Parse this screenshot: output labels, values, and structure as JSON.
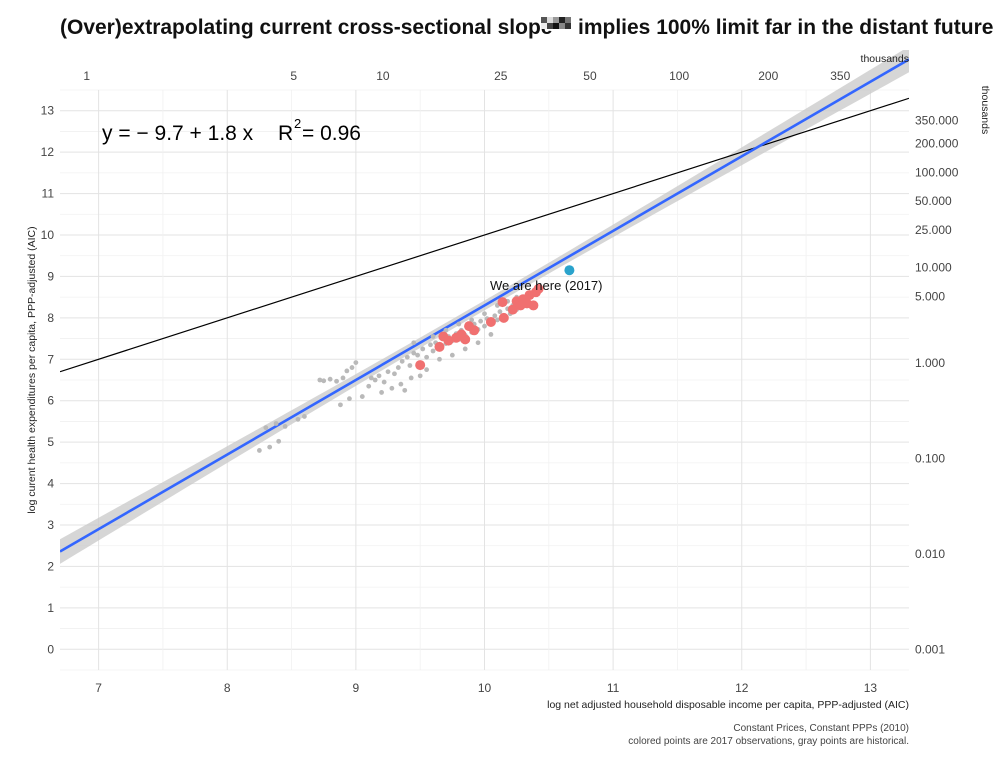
{
  "chart_data": {
    "type": "scatter",
    "title": "(Over)extrapolating current cross-sectional slope",
    "title_suffix": "implies 100% limit far in the distant future",
    "xlabel": "log net adjusted household disposable income per capita, PPP-adjusted (AIC)",
    "ylabel": "log curent health expenditures per capita, PPP-adjusted (AIC)",
    "xlim": [
      6.7,
      13.3
    ],
    "ylim": [
      -0.5,
      13.5
    ],
    "x_ticks": [
      7,
      8,
      9,
      10,
      11,
      12,
      13
    ],
    "y_ticks": [
      0,
      1,
      2,
      3,
      4,
      5,
      6,
      7,
      8,
      9,
      10,
      11,
      12,
      13
    ],
    "grid": true,
    "top_axis": {
      "unit_label": "thousands",
      "ticks": [
        {
          "label": "1",
          "value": 1
        },
        {
          "label": "5",
          "value": 5
        },
        {
          "label": "10",
          "value": 10
        },
        {
          "label": "25",
          "value": 25
        },
        {
          "label": "50",
          "value": 50
        },
        {
          "label": "100",
          "value": 100
        },
        {
          "label": "200",
          "value": 200
        },
        {
          "label": "350",
          "value": 350
        }
      ]
    },
    "right_axis": {
      "unit_label": "thousands",
      "ticks": [
        {
          "label": "0.001",
          "value": 0.001
        },
        {
          "label": "0.010",
          "value": 0.01
        },
        {
          "label": "0.100",
          "value": 0.1
        },
        {
          "label": "1.000",
          "value": 1
        },
        {
          "label": "5.000",
          "value": 5
        },
        {
          "label": "10.000",
          "value": 10
        },
        {
          "label": "25.000",
          "value": 25
        },
        {
          "label": "50.000",
          "value": 50
        },
        {
          "label": "100.000",
          "value": 100
        },
        {
          "label": "200.000",
          "value": 200
        },
        {
          "label": "350.000",
          "value": 350
        }
      ]
    },
    "equation": {
      "y_part": "y = − 9.7 + 1.8 x",
      "r2_symbol": "R",
      "r2_exp": "2",
      "r2_value": " = 0.96"
    },
    "annotation": "We are here (2017)",
    "fit": {
      "intercept": -9.7,
      "slope": 1.8,
      "ci_halfwidth_at_mean": 0.12,
      "ci_growth": 0.085,
      "mean_x": 9.9
    },
    "reference_line": {
      "intercept": 0,
      "slope": 1
    },
    "colors": {
      "fit": "#3366ff",
      "band": "#c8c8c8",
      "historical": "#b9b9b9",
      "current": "#f07070",
      "highlight": "#2aa3cc",
      "reference": "#000000"
    },
    "historical_points": [
      [
        8.25,
        4.8
      ],
      [
        8.33,
        4.88
      ],
      [
        8.4,
        5.02
      ],
      [
        8.3,
        5.35
      ],
      [
        8.38,
        5.45
      ],
      [
        8.45,
        5.38
      ],
      [
        8.55,
        5.55
      ],
      [
        8.6,
        5.62
      ],
      [
        8.72,
        6.5
      ],
      [
        8.75,
        6.48
      ],
      [
        8.8,
        6.52
      ],
      [
        8.85,
        6.47
      ],
      [
        8.9,
        6.55
      ],
      [
        8.93,
        6.72
      ],
      [
        8.97,
        6.8
      ],
      [
        9.0,
        6.92
      ],
      [
        8.88,
        5.9
      ],
      [
        8.95,
        6.05
      ],
      [
        9.05,
        6.1
      ],
      [
        9.1,
        6.35
      ],
      [
        9.12,
        6.55
      ],
      [
        9.18,
        6.6
      ],
      [
        9.22,
        6.45
      ],
      [
        9.25,
        6.7
      ],
      [
        9.3,
        6.65
      ],
      [
        9.33,
        6.8
      ],
      [
        9.36,
        6.95
      ],
      [
        9.4,
        7.05
      ],
      [
        9.42,
        6.85
      ],
      [
        9.45,
        7.15
      ],
      [
        9.48,
        7.1
      ],
      [
        9.5,
        6.9
      ],
      [
        9.52,
        7.25
      ],
      [
        9.55,
        7.05
      ],
      [
        9.58,
        7.35
      ],
      [
        9.6,
        7.2
      ],
      [
        9.62,
        7.4
      ],
      [
        9.65,
        7.3
      ],
      [
        9.68,
        7.5
      ],
      [
        9.7,
        7.38
      ],
      [
        9.72,
        7.55
      ],
      [
        9.75,
        7.45
      ],
      [
        9.78,
        7.62
      ],
      [
        9.8,
        7.48
      ],
      [
        9.82,
        7.7
      ],
      [
        9.85,
        7.58
      ],
      [
        9.88,
        7.75
      ],
      [
        9.9,
        7.65
      ],
      [
        9.92,
        7.85
      ],
      [
        9.95,
        7.72
      ],
      [
        9.97,
        7.92
      ],
      [
        10.0,
        7.8
      ],
      [
        10.02,
        7.98
      ],
      [
        10.05,
        7.85
      ],
      [
        10.08,
        8.05
      ],
      [
        10.1,
        7.95
      ],
      [
        10.12,
        8.15
      ],
      [
        10.15,
        8.05
      ],
      [
        10.18,
        8.22
      ],
      [
        10.2,
        8.1
      ],
      [
        10.22,
        8.3
      ],
      [
        10.25,
        8.2
      ],
      [
        10.28,
        8.36
      ],
      [
        10.3,
        8.28
      ],
      [
        9.2,
        6.2
      ],
      [
        9.28,
        6.3
      ],
      [
        9.35,
        6.4
      ],
      [
        9.43,
        6.55
      ],
      [
        9.55,
        6.75
      ],
      [
        9.65,
        7.0
      ],
      [
        9.75,
        7.1
      ],
      [
        9.85,
        7.25
      ],
      [
        9.95,
        7.4
      ],
      [
        10.05,
        7.6
      ],
      [
        9.45,
        7.4
      ],
      [
        9.6,
        7.55
      ],
      [
        9.7,
        7.7
      ],
      [
        9.8,
        7.85
      ],
      [
        9.9,
        7.95
      ],
      [
        10.0,
        8.1
      ],
      [
        10.1,
        8.3
      ],
      [
        10.18,
        8.4
      ],
      [
        10.25,
        8.5
      ],
      [
        9.15,
        6.5
      ],
      [
        9.38,
        6.25
      ],
      [
        9.5,
        6.6
      ]
    ],
    "current_points": [
      [
        9.5,
        6.86
      ],
      [
        9.65,
        7.3
      ],
      [
        9.68,
        7.55
      ],
      [
        9.72,
        7.45
      ],
      [
        9.78,
        7.52
      ],
      [
        9.82,
        7.6
      ],
      [
        9.85,
        7.48
      ],
      [
        9.88,
        7.8
      ],
      [
        9.92,
        7.7
      ],
      [
        10.05,
        7.9
      ],
      [
        10.15,
        8.0
      ],
      [
        10.14,
        8.38
      ],
      [
        10.22,
        8.2
      ],
      [
        10.25,
        8.4
      ],
      [
        10.28,
        8.3
      ],
      [
        10.3,
        8.45
      ],
      [
        10.33,
        8.35
      ],
      [
        10.35,
        8.55
      ],
      [
        10.38,
        8.3
      ],
      [
        10.4,
        8.62
      ],
      [
        10.42,
        8.7
      ]
    ],
    "highlight_point": [
      10.66,
      9.15
    ]
  }
}
